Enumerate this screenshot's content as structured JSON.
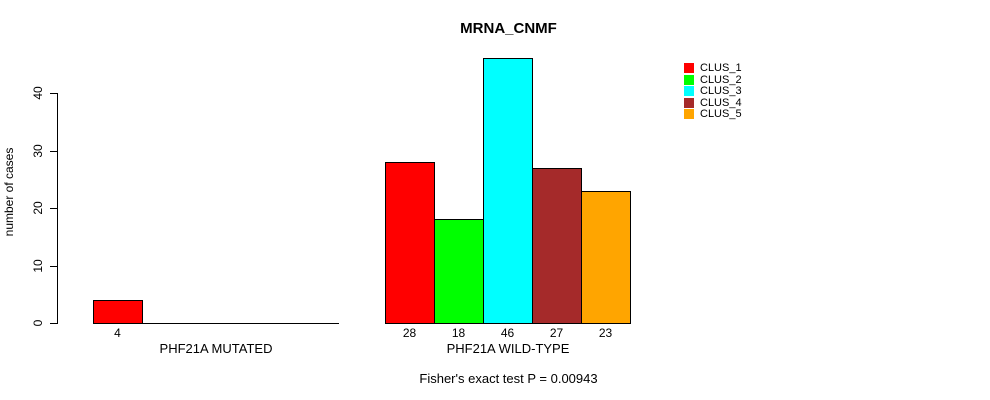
{
  "chart_data": {
    "type": "bar",
    "title": "MRNA_CNMF",
    "ylabel": "number of cases",
    "xlabel": "",
    "ylim": [
      0,
      46
    ],
    "yticks": [
      0,
      10,
      20,
      30,
      40
    ],
    "grid": false,
    "legend_position": "top-right",
    "legend": [
      {
        "label": "CLUS_1",
        "color": "#FF0000"
      },
      {
        "label": "CLUS_2",
        "color": "#00FF00"
      },
      {
        "label": "CLUS_3",
        "color": "#00FFFF"
      },
      {
        "label": "CLUS_4",
        "color": "#A52A2A"
      },
      {
        "label": "CLUS_5",
        "color": "#FFA500"
      }
    ],
    "groups": [
      {
        "label": "PHF21A MUTATED",
        "values": [
          4,
          0,
          0,
          0,
          0
        ],
        "value_labels": [
          "4",
          "",
          "",
          "",
          ""
        ]
      },
      {
        "label": "PHF21A WILD-TYPE",
        "values": [
          28,
          18,
          46,
          27,
          23
        ],
        "value_labels": [
          "28",
          "18",
          "46",
          "27",
          "23"
        ]
      }
    ],
    "footnote": "Fisher's exact test P = 0.00943",
    "text_color": "#000000",
    "background": "#FFFFFF"
  }
}
